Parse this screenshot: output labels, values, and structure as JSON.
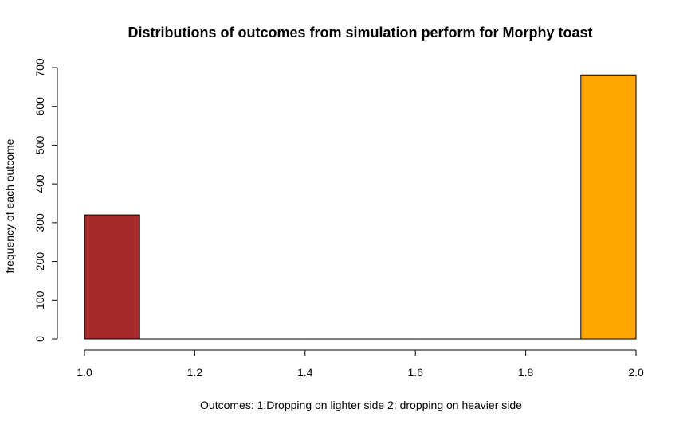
{
  "chart_data": {
    "type": "bar",
    "title": "Distributions of outcomes from simulation perform for Morphy toast",
    "xlabel": "Outcomes: 1:Dropping on lighter side 2: dropping on heavier side",
    "ylabel": "frequency of each outcome",
    "xlim": [
      1.0,
      2.0
    ],
    "ylim": [
      0,
      700
    ],
    "x_ticks": [
      "1.0",
      "1.2",
      "1.4",
      "1.6",
      "1.8",
      "2.0"
    ],
    "y_ticks": [
      "0",
      "100",
      "200",
      "300",
      "400",
      "500",
      "600",
      "700"
    ],
    "grid": false,
    "legend": "none",
    "bins": [
      {
        "x_start": 1.0,
        "x_end": 1.1,
        "value": 320,
        "color": "#A52A2A"
      },
      {
        "x_start": 1.1,
        "x_end": 1.2,
        "value": 0,
        "color": "#000000"
      },
      {
        "x_start": 1.2,
        "x_end": 1.3,
        "value": 0,
        "color": "#000000"
      },
      {
        "x_start": 1.3,
        "x_end": 1.4,
        "value": 0,
        "color": "#000000"
      },
      {
        "x_start": 1.4,
        "x_end": 1.5,
        "value": 0,
        "color": "#000000"
      },
      {
        "x_start": 1.5,
        "x_end": 1.6,
        "value": 0,
        "color": "#000000"
      },
      {
        "x_start": 1.6,
        "x_end": 1.7,
        "value": 0,
        "color": "#000000"
      },
      {
        "x_start": 1.7,
        "x_end": 1.8,
        "value": 0,
        "color": "#000000"
      },
      {
        "x_start": 1.8,
        "x_end": 1.9,
        "value": 0,
        "color": "#000000"
      },
      {
        "x_start": 1.9,
        "x_end": 2.0,
        "value": 681,
        "color": "#FFA500"
      }
    ]
  }
}
